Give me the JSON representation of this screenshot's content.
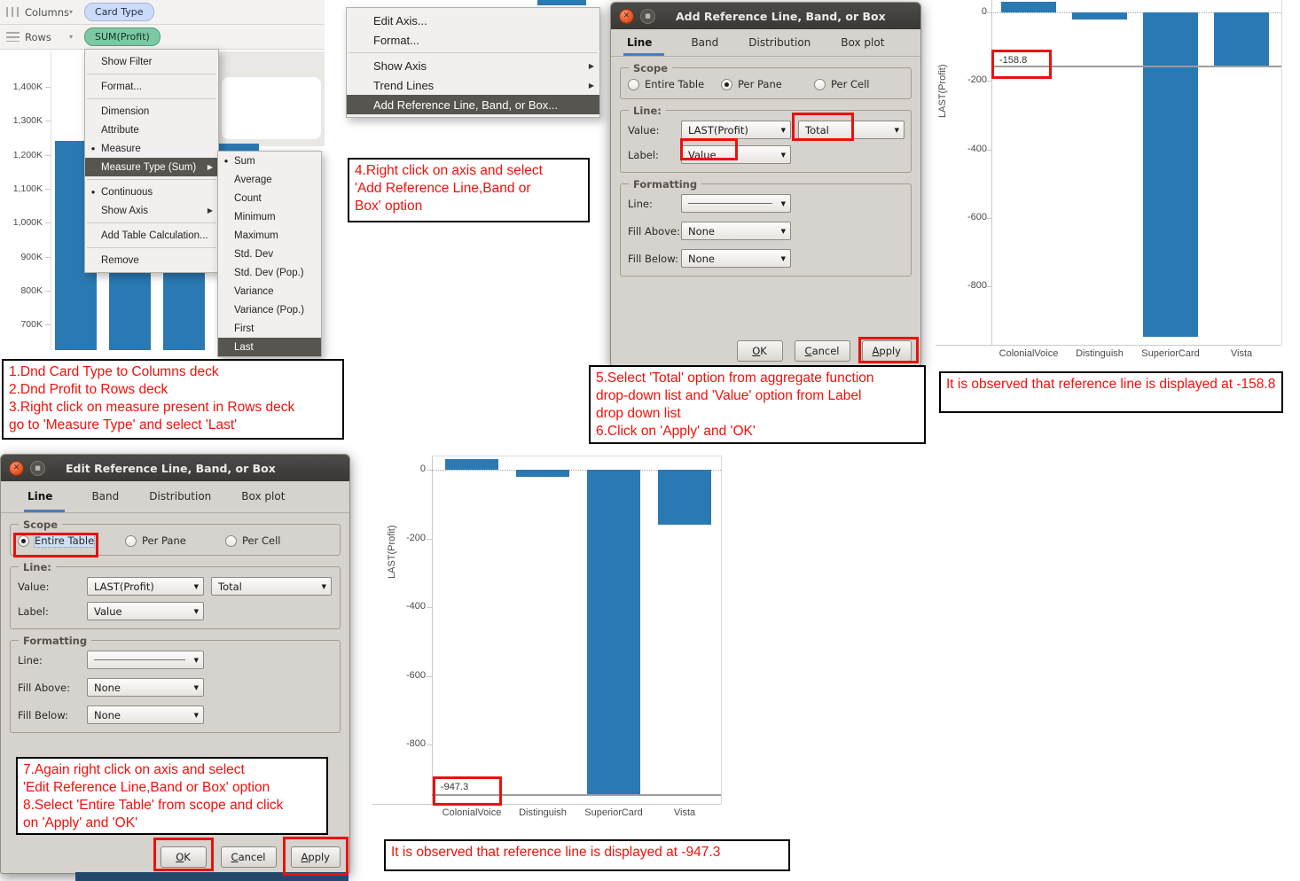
{
  "colors": {
    "bar_blue": "#2a79b2",
    "reference_line_gray": "#9d9d9d",
    "annotation_red": "#f50f0a",
    "highlight_box_red": "#e8120c",
    "menu_highlight": "#57554f",
    "pill_dimension_bg": "#ccdcf8",
    "pill_measure_bg": "#7dc8a4",
    "dialog_bg": "#d6d2cd",
    "titlebar_bg": "#3a3935"
  },
  "shelves": {
    "columns_label": "Columns",
    "columns_pill": "Card Type",
    "rows_label": "Rows",
    "rows_pill": "SUM(Profit)"
  },
  "left_chart": {
    "ylabel": "SUM(Profit)",
    "y_tick_labels": [
      "1,400K",
      "1,300K",
      "1,200K",
      "1,100K",
      "1,000K",
      "900K",
      "800K",
      "700K"
    ],
    "note": "bars mostly occluded by context menus; visible bar tops near 1,240K"
  },
  "measure_menu": {
    "items": [
      {
        "label": "Show Filter",
        "sep_after": true
      },
      {
        "label": "Format...",
        "sep_after": true
      },
      {
        "label": "Dimension"
      },
      {
        "label": "Attribute"
      },
      {
        "label": "Measure",
        "bullet": true
      },
      {
        "label": "Measure Type (Sum)",
        "arrow": true,
        "highlighted": true,
        "sep_after": true
      },
      {
        "label": "Continuous",
        "bullet": true
      },
      {
        "label": "Show Axis",
        "arrow": true,
        "sep_after": true
      },
      {
        "label": "Add Table Calculation...",
        "sep_after": true
      },
      {
        "label": "Remove"
      }
    ]
  },
  "aggregate_submenu": {
    "items": [
      {
        "label": "Sum",
        "bullet": true
      },
      {
        "label": "Average"
      },
      {
        "label": "Count"
      },
      {
        "label": "Minimum"
      },
      {
        "label": "Maximum"
      },
      {
        "label": "Std. Dev"
      },
      {
        "label": "Std. Dev (Pop.)"
      },
      {
        "label": "Variance"
      },
      {
        "label": "Variance (Pop.)"
      },
      {
        "label": "First"
      },
      {
        "label": "Last",
        "highlighted": true
      }
    ]
  },
  "axis_menu": {
    "items": [
      {
        "label": "Edit Axis..."
      },
      {
        "label": "Format...",
        "sep_after": true
      },
      {
        "label": "Show Axis",
        "arrow": true
      },
      {
        "label": "Trend Lines",
        "arrow": true
      },
      {
        "label": "Add Reference Line, Band, or Box...",
        "highlighted": true
      }
    ]
  },
  "dialogs": {
    "add": {
      "title": "Add Reference Line, Band, or Box",
      "tabs": [
        "Line",
        "Band",
        "Distribution",
        "Box plot"
      ],
      "active_tab": "Line",
      "scope": {
        "label": "Scope",
        "options": [
          {
            "label": "Entire Table",
            "selected": false
          },
          {
            "label": "Per Pane",
            "selected": true
          },
          {
            "label": "Per Cell",
            "selected": false
          }
        ]
      },
      "line": {
        "label": "Line:",
        "value_label": "Value:",
        "value": "LAST(Profit)",
        "aggregation": "Total",
        "label_label": "Label:",
        "label_value": "Value"
      },
      "formatting": {
        "label": "Formatting",
        "line_label": "Line:",
        "line_style": "thin-solid-line",
        "fill_above_label": "Fill Above:",
        "fill_above": "None",
        "fill_below_label": "Fill Below:",
        "fill_below": "None"
      },
      "buttons": [
        "OK",
        "Cancel",
        "Apply"
      ]
    },
    "edit": {
      "title": "Edit Reference Line, Band, or Box",
      "tabs": [
        "Line",
        "Band",
        "Distribution",
        "Box plot"
      ],
      "active_tab": "Line",
      "scope": {
        "label": "Scope",
        "options": [
          {
            "label": "Entire Table",
            "selected": true
          },
          {
            "label": "Per Pane",
            "selected": false
          },
          {
            "label": "Per Cell",
            "selected": false
          }
        ]
      },
      "line": {
        "label": "Line:",
        "value_label": "Value:",
        "value": "LAST(Profit)",
        "aggregation": "Total",
        "label_label": "Label:",
        "label_value": "Value"
      },
      "formatting": {
        "label": "Formatting",
        "line_label": "Line:",
        "line_style": "thin-solid-line",
        "fill_above_label": "Fill Above:",
        "fill_above": "None",
        "fill_below_label": "Fill Below:",
        "fill_below": "None"
      },
      "buttons": [
        "OK",
        "Cancel",
        "Apply"
      ]
    }
  },
  "chart_data": [
    {
      "id": "reference-line-per-pane",
      "type": "bar",
      "categories": [
        "ColonialVoice",
        "Distinguish",
        "SuperiorCard",
        "Vista"
      ],
      "values": [
        30,
        -20,
        -947.3,
        -158.8
      ],
      "ylabel": "LAST(Profit)",
      "y_ticks": [
        0,
        -200,
        -400,
        -600,
        -800
      ],
      "ylim": [
        -1000,
        40
      ],
      "grid": false,
      "reference_line": {
        "value": -158.8,
        "label": "-158.8"
      }
    },
    {
      "id": "reference-line-entire-table",
      "type": "bar",
      "categories": [
        "ColonialVoice",
        "Distinguish",
        "SuperiorCard",
        "Vista"
      ],
      "values": [
        30,
        -20,
        -947.3,
        -158.8
      ],
      "ylabel": "LAST(Profit)",
      "y_ticks": [
        0,
        -200,
        -400,
        -600,
        -800
      ],
      "ylim": [
        -1000,
        40
      ],
      "grid": false,
      "reference_line": {
        "value": -947.3,
        "label": "-947.3"
      }
    },
    {
      "id": "background-sum-profit-by-card-type",
      "type": "bar",
      "ylabel": "SUM(Profit)",
      "y_tick_labels": [
        "1,400K",
        "1,300K",
        "1,200K",
        "1,100K",
        "1,000K",
        "900K",
        "800K",
        "700K"
      ],
      "note": "bars occluded by open context menus"
    }
  ],
  "annotations": {
    "step_1_3": "1.Dnd Card Type to Columns deck\n2.Dnd Profit to Rows deck\n3.Right click on measure present in Rows deck\n   go to 'Measure Type' and select 'Last'",
    "step_4": "4.Right click on axis and select\n   'Add Reference Line,Band or\n   Box' option",
    "step_5_6": "5.Select 'Total' option from aggregate function\n   drop-down list and 'Value' option from Label\n   drop down list\n6.Click on 'Apply' and 'OK'",
    "step_7_8": "7.Again right click on axis and select\n   'Edit Reference Line,Band or Box' option\n8.Select 'Entire Table' from scope and click\n   on 'Apply' and 'OK'",
    "observation_1": "It is observed that reference line is displayed at -158.8",
    "observation_2": "It is observed that reference line is displayed at -947.3"
  }
}
